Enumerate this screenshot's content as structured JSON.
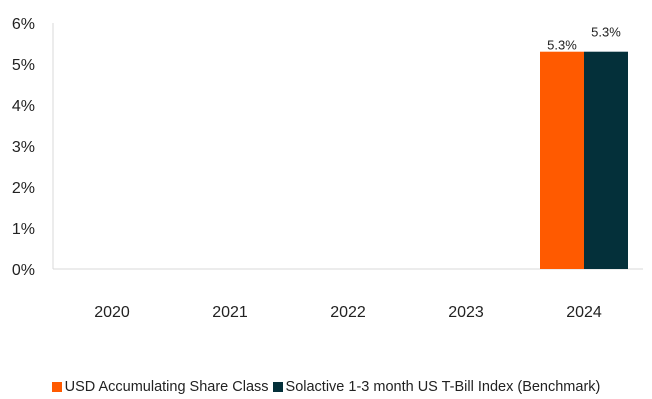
{
  "chart_data": {
    "type": "bar",
    "categories": [
      "2020",
      "2021",
      "2022",
      "2023",
      "2024"
    ],
    "series": [
      {
        "name": "USD Accumulating Share Class",
        "color": "#ff5a00",
        "values": [
          null,
          null,
          null,
          null,
          5.3
        ],
        "labels": [
          "",
          "",
          "",
          "",
          "5.3%"
        ]
      },
      {
        "name": "Solactive 1-3 month US T-Bill Index (Benchmark)",
        "color": "#04303a",
        "values": [
          null,
          null,
          null,
          null,
          5.3
        ],
        "labels": [
          "",
          "",
          "",
          "",
          "5.3%"
        ]
      }
    ],
    "ylim": [
      0,
      6
    ],
    "yticks": [
      "0%",
      "1%",
      "2%",
      "3%",
      "4%",
      "5%",
      "6%"
    ],
    "title": "",
    "xlabel": "",
    "ylabel": "",
    "grid": false,
    "legend_position": "bottom"
  }
}
